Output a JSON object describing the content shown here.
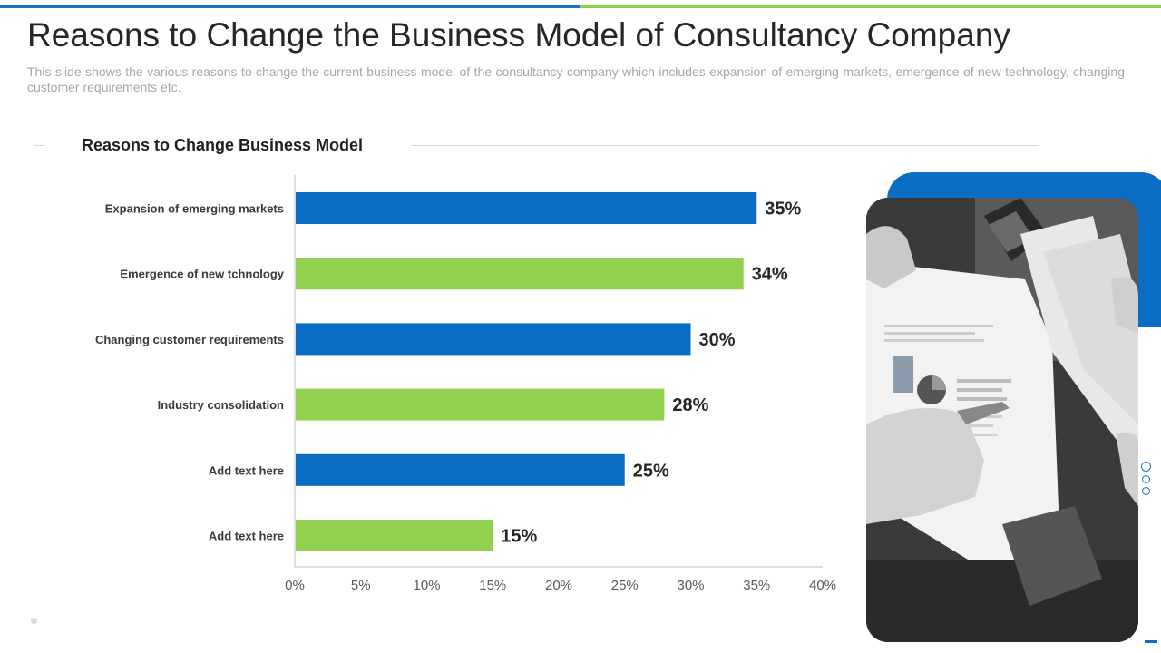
{
  "slide": {
    "title": "Reasons to Change the Business Model of Consultancy Company",
    "subtitle": "This slide shows the various reasons to change the current business model of the consultancy  company which includes expansion of emerging markets, emergence of new technology,  changing customer requirements etc."
  },
  "colors": {
    "blue": "#0a6cc2",
    "green": "#92d050",
    "accent_blue": "#1a6fc0",
    "accent_green": "#92d050"
  },
  "photo": {
    "description_icon": "business-documents-photo"
  },
  "chart_data": {
    "type": "bar",
    "orientation": "horizontal",
    "title": "Reasons to Change Business Model",
    "categories": [
      "Expansion of emerging markets",
      "Emergence of new tchnology",
      "Changing customer requirements",
      "Industry consolidation",
      "Add text here",
      "Add text here"
    ],
    "values": [
      35,
      34,
      30,
      28,
      25,
      15
    ],
    "value_labels": [
      "35%",
      "34%",
      "30%",
      "28%",
      "25%",
      "15%"
    ],
    "bar_colors": [
      "#0a6cc2",
      "#92d050",
      "#0a6cc2",
      "#92d050",
      "#0a6cc2",
      "#92d050"
    ],
    "xlim": [
      0,
      40
    ],
    "x_ticks": [
      0,
      5,
      10,
      15,
      20,
      25,
      30,
      35,
      40
    ],
    "x_tick_labels": [
      "0%",
      "5%",
      "10%",
      "15%",
      "20%",
      "25%",
      "30%",
      "35%",
      "40%"
    ],
    "grid": false,
    "legend": "none"
  }
}
